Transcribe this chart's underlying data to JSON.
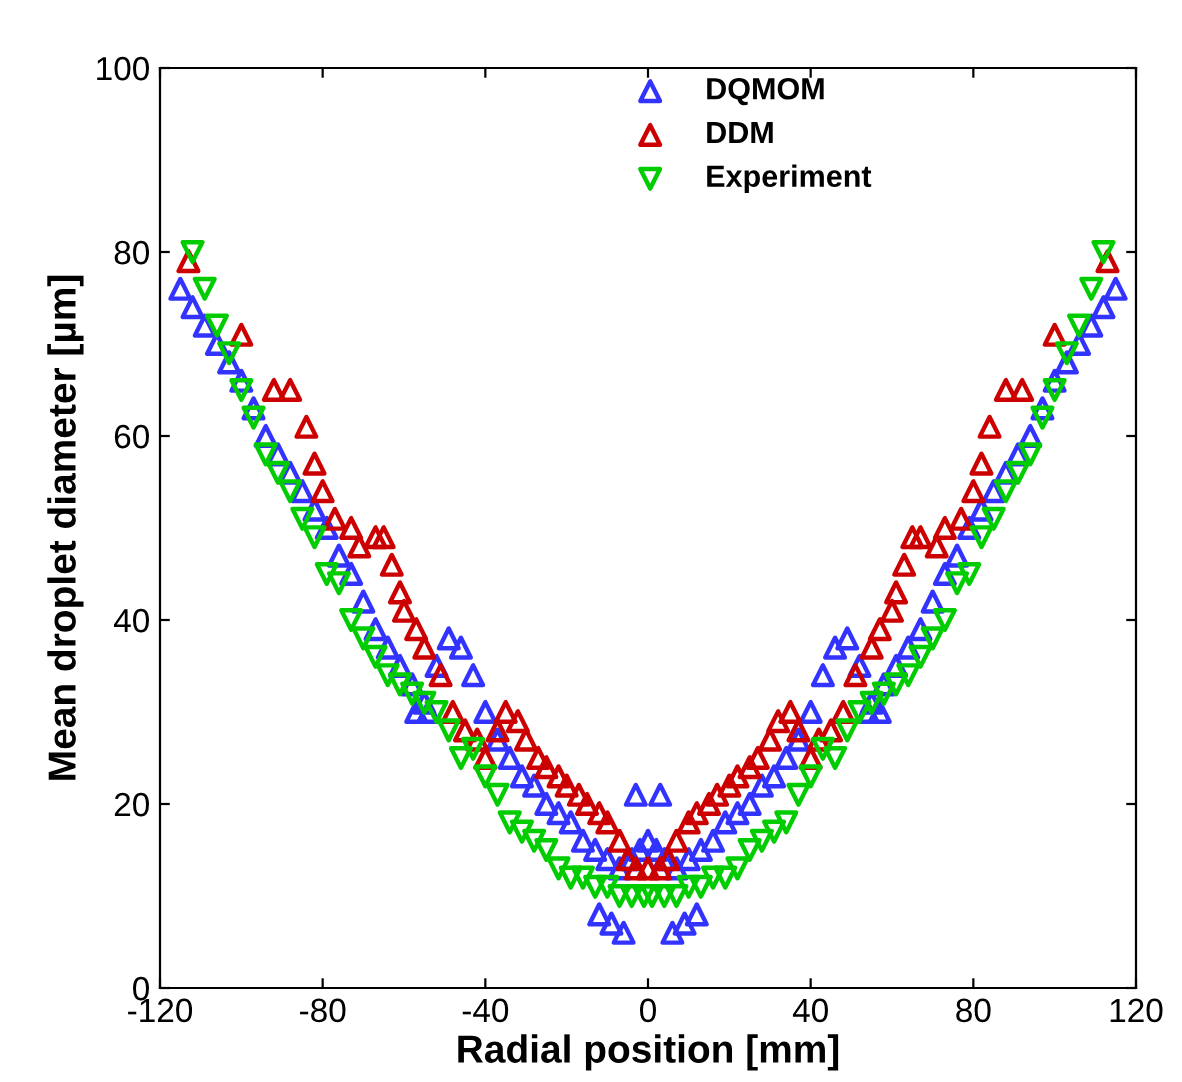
{
  "chart_data": {
    "type": "scatter",
    "xlabel": "Radial position [mm]",
    "ylabel": "Mean droplet diameter [µm]",
    "xlim": [
      -120,
      120
    ],
    "ylim": [
      0,
      100
    ],
    "xticks": [
      -120,
      -80,
      -40,
      0,
      40,
      80,
      120
    ],
    "yticks": [
      0,
      20,
      40,
      60,
      80,
      100
    ],
    "grid": false,
    "legend": "top",
    "series": [
      {
        "name": "DQMOM",
        "color": "#3333ff",
        "marker": "triangle",
        "x": [
          -115,
          -112,
          -109,
          -106,
          -103,
          -100,
          -97,
          -94,
          -91,
          -88,
          -85,
          -82,
          -79,
          -76,
          -73,
          -70,
          -67,
          -64,
          -61,
          -58,
          -55,
          -52,
          -49,
          -46,
          -43,
          -40,
          -37,
          -34,
          -31,
          -28,
          -25,
          -22,
          -19,
          -16,
          -13,
          -10,
          -7,
          -4,
          -2,
          0,
          2,
          4,
          7,
          10,
          13,
          16,
          19,
          22,
          25,
          28,
          31,
          34,
          37,
          40,
          43,
          46,
          49,
          52,
          55,
          58,
          61,
          64,
          67,
          70,
          73,
          76,
          79,
          82,
          85,
          88,
          91,
          94,
          97,
          100,
          103,
          106,
          109,
          112,
          115,
          -57,
          -54,
          -12,
          -9,
          -6,
          -3,
          3,
          6,
          9,
          12,
          54,
          57
        ],
        "values": [
          76,
          74,
          72,
          70,
          68,
          66,
          63,
          60,
          58,
          56,
          54,
          52,
          50,
          47,
          45,
          42,
          39,
          37,
          35,
          33,
          31,
          35,
          38,
          37,
          34,
          30,
          27,
          25,
          23,
          22,
          20,
          19,
          18,
          16,
          15,
          14,
          13,
          14,
          15,
          16,
          15,
          14,
          13,
          14,
          15,
          16,
          18,
          19,
          20,
          22,
          23,
          25,
          27,
          30,
          34,
          37,
          38,
          35,
          31,
          33,
          35,
          37,
          39,
          42,
          45,
          47,
          50,
          52,
          54,
          56,
          58,
          60,
          63,
          66,
          68,
          70,
          72,
          74,
          76,
          30,
          30,
          8,
          7,
          6,
          21,
          21,
          6,
          7,
          8,
          30,
          30
        ]
      },
      {
        "name": "DDM",
        "color": "#cc0000",
        "marker": "triangle",
        "x": [
          -113,
          -100,
          -92,
          -88,
          -84,
          -82,
          -80,
          -77,
          -73,
          -71,
          -67,
          -65,
          -63,
          -61,
          -60,
          -57,
          -55,
          -51,
          -48,
          -45,
          -42,
          -40,
          -37,
          -35,
          -32,
          -30,
          -27,
          -25,
          -22,
          -20,
          -17,
          -15,
          -12,
          -10,
          -7,
          -5,
          -3,
          0,
          3,
          5,
          7,
          10,
          12,
          15,
          17,
          20,
          22,
          25,
          27,
          30,
          32,
          35,
          37,
          40,
          42,
          45,
          48,
          51,
          55,
          57,
          60,
          61,
          63,
          65,
          67,
          71,
          73,
          77,
          80,
          82,
          84,
          88,
          92,
          100,
          113
        ],
        "values": [
          79,
          71,
          65,
          65,
          61,
          57,
          54,
          51,
          50,
          48,
          49,
          49,
          46,
          43,
          41,
          39,
          37,
          34,
          30,
          28,
          27,
          25,
          28,
          30,
          29,
          27,
          25,
          24,
          23,
          22,
          21,
          20,
          19,
          18,
          16,
          14,
          13,
          13,
          13,
          14,
          16,
          18,
          19,
          20,
          21,
          22,
          23,
          24,
          25,
          27,
          29,
          30,
          28,
          25,
          27,
          28,
          30,
          34,
          37,
          39,
          41,
          43,
          46,
          49,
          49,
          48,
          50,
          51,
          54,
          57,
          61,
          65,
          65,
          71,
          79
        ]
      },
      {
        "name": "Experiment",
        "color": "#00cc00",
        "marker": "triangle_down",
        "x": [
          -112,
          -109,
          -106,
          -103,
          -100,
          -97,
          -94,
          -91,
          -88,
          -85,
          -82,
          -79,
          -76,
          -73,
          -70,
          -67,
          -64,
          -61,
          -58,
          -55,
          -52,
          -49,
          -46,
          -43,
          -40,
          -37,
          -34,
          -31,
          -28,
          -25,
          -22,
          -19,
          -16,
          -13,
          -10,
          -7,
          -4,
          -1,
          1,
          4,
          7,
          10,
          13,
          16,
          19,
          22,
          25,
          28,
          31,
          34,
          37,
          40,
          43,
          46,
          49,
          52,
          55,
          58,
          61,
          64,
          67,
          70,
          73,
          76,
          79,
          82,
          85,
          88,
          91,
          94,
          97,
          100,
          103,
          106,
          109,
          112
        ],
        "values": [
          80,
          76,
          72,
          69,
          65,
          62,
          58,
          56,
          54,
          51,
          49,
          45,
          44,
          40,
          38,
          36,
          34,
          33,
          32,
          31,
          30,
          28,
          25,
          26,
          23,
          21,
          18,
          17,
          16,
          15,
          13,
          12,
          12,
          11,
          11,
          10,
          10,
          10,
          10,
          10,
          10,
          11,
          11,
          12,
          12,
          13,
          15,
          16,
          17,
          18,
          21,
          23,
          26,
          25,
          28,
          30,
          31,
          32,
          33,
          34,
          36,
          38,
          40,
          44,
          45,
          49,
          51,
          54,
          56,
          58,
          62,
          65,
          69,
          72,
          76,
          80
        ]
      }
    ]
  }
}
